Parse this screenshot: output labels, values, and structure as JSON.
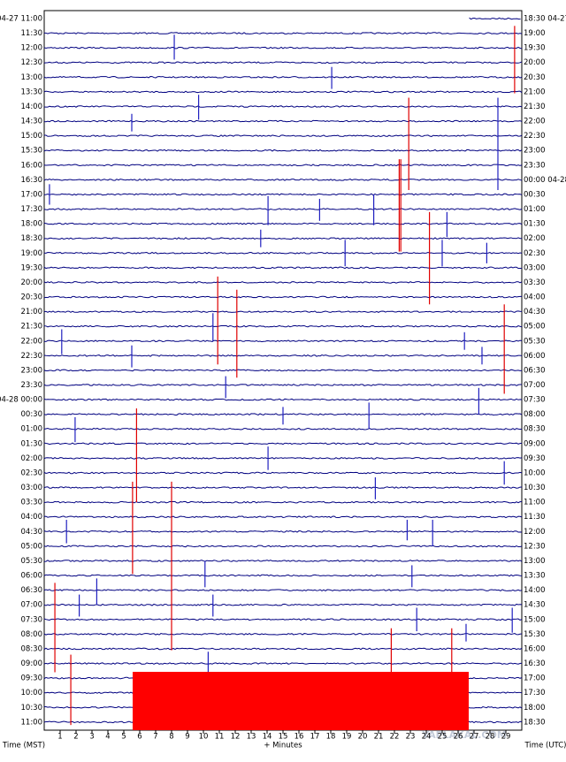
{
  "left_labels": [
    "04-27 11:00",
    "11:30",
    "12:00",
    "12:30",
    "13:00",
    "13:30",
    "14:00",
    "14:30",
    "15:00",
    "15:30",
    "16:00",
    "16:30",
    "17:00",
    "17:30",
    "18:00",
    "18:30",
    "19:00",
    "19:30",
    "20:00",
    "20:30",
    "21:00",
    "21:30",
    "22:00",
    "22:30",
    "23:00",
    "23:30",
    "04-28 00:00",
    "00:30",
    "01:00",
    "01:30",
    "02:00",
    "02:30",
    "03:00",
    "03:30",
    "04:00",
    "04:30",
    "05:00",
    "05:30",
    "06:00",
    "06:30",
    "07:00",
    "07:30",
    "08:00",
    "08:30",
    "09:00",
    "09:30",
    "10:00",
    "10:30",
    "11:00"
  ],
  "right_labels": [
    "18:30 04-27",
    "19:00",
    "19:30",
    "20:00",
    "20:30",
    "21:00",
    "21:30",
    "22:00",
    "22:30",
    "23:00",
    "23:30",
    "00:00 04-28",
    "00:30",
    "01:00",
    "01:30",
    "02:00",
    "02:30",
    "03:00",
    "03:30",
    "04:00",
    "04:30",
    "05:00",
    "05:30",
    "06:00",
    "06:30",
    "07:00",
    "07:30",
    "08:00",
    "08:30",
    "09:00",
    "09:30",
    "10:00",
    "10:30",
    "11:00",
    "11:30",
    "12:00",
    "12:30",
    "13:00",
    "13:30",
    "14:00",
    "14:30",
    "15:00",
    "15:30",
    "16:00",
    "16:30",
    "17:00",
    "17:30",
    "18:00",
    "18:30"
  ],
  "x_axis": {
    "xlim": [
      0,
      30
    ],
    "ticks": [
      1,
      2,
      3,
      4,
      5,
      6,
      7,
      8,
      9,
      10,
      11,
      12,
      13,
      14,
      15,
      16,
      17,
      18,
      19,
      20,
      21,
      22,
      23,
      24,
      25,
      26,
      27,
      28,
      29
    ],
    "label": "+ Minutes"
  },
  "left_axis_label": "Time (MST)",
  "right_axis_label": "Time (UTC)",
  "watermark": "YAPLAKAL.COM",
  "trace_color": "#000080",
  "first_trace_start_minute": 26.7,
  "events": [
    [
      29.55,
      0.5,
      5.1,
      "#e00000"
    ],
    [
      8.17,
      1.1,
      2.8,
      "#2020c0"
    ],
    [
      18.06,
      3.3,
      4.8,
      "#2020c0"
    ],
    [
      22.9,
      5.4,
      11.7,
      "#e00000"
    ],
    [
      9.7,
      5.2,
      6.9,
      "#2020c0"
    ],
    [
      5.5,
      6.5,
      7.7,
      "#2020c0"
    ],
    [
      28.5,
      5.4,
      11.7,
      "#2020c0"
    ],
    [
      22.3,
      9.6,
      15.9,
      "#e00000"
    ],
    [
      22.4,
      9.6,
      15.9,
      "#e00000"
    ],
    [
      0.33,
      11.3,
      12.7,
      "#2020c0"
    ],
    [
      14.06,
      12.1,
      14.1,
      "#2020c0"
    ],
    [
      17.3,
      12.3,
      13.8,
      "#2020c0"
    ],
    [
      20.7,
      12.0,
      14.1,
      "#2020c0"
    ],
    [
      24.2,
      13.2,
      19.5,
      "#e00000"
    ],
    [
      25.3,
      13.2,
      14.9,
      "#2020c0"
    ],
    [
      13.6,
      14.4,
      15.6,
      "#2020c0"
    ],
    [
      18.9,
      15.1,
      16.9,
      "#2020c0"
    ],
    [
      25.0,
      15.1,
      16.9,
      "#2020c0"
    ],
    [
      27.8,
      15.3,
      16.7,
      "#2020c0"
    ],
    [
      10.9,
      17.6,
      23.6,
      "#e00000"
    ],
    [
      12.1,
      18.5,
      24.5,
      "#e00000"
    ],
    [
      28.9,
      19.5,
      25.6,
      "#e00000"
    ],
    [
      10.6,
      20.1,
      22.0,
      "#2020c0"
    ],
    [
      1.1,
      21.2,
      22.9,
      "#2020c0"
    ],
    [
      26.4,
      21.4,
      22.6,
      "#2020c0"
    ],
    [
      5.5,
      22.3,
      23.8,
      "#2020c0"
    ],
    [
      27.5,
      22.4,
      23.6,
      "#2020c0"
    ],
    [
      11.4,
      24.4,
      25.9,
      "#2020c0"
    ],
    [
      27.3,
      25.2,
      27.0,
      "#2020c0"
    ],
    [
      20.4,
      26.2,
      28.0,
      "#2020c0"
    ],
    [
      15.0,
      26.5,
      27.7,
      "#2020c0"
    ],
    [
      1.94,
      27.2,
      28.9,
      "#2020c0"
    ],
    [
      5.8,
      26.6,
      33.0,
      "#e00000"
    ],
    [
      14.06,
      29.2,
      30.8,
      "#2020c0"
    ],
    [
      28.9,
      30.2,
      31.8,
      "#2020c0"
    ],
    [
      5.55,
      31.6,
      37.9,
      "#e00000"
    ],
    [
      8.0,
      31.6,
      43.1,
      "#e00000"
    ],
    [
      20.8,
      31.3,
      32.8,
      "#2020c0"
    ],
    [
      1.4,
      34.2,
      35.8,
      "#2020c0"
    ],
    [
      22.8,
      34.2,
      35.6,
      "#2020c0"
    ],
    [
      24.4,
      34.2,
      36.0,
      "#2020c0"
    ],
    [
      10.1,
      37.0,
      38.8,
      "#2020c0"
    ],
    [
      23.1,
      37.3,
      38.8,
      "#2020c0"
    ],
    [
      0.67,
      38.5,
      44.6,
      "#e00000"
    ],
    [
      3.3,
      38.2,
      40.0,
      "#2020c0"
    ],
    [
      2.2,
      39.3,
      40.8,
      "#2020c0"
    ],
    [
      10.6,
      39.3,
      40.8,
      "#2020c0"
    ],
    [
      23.4,
      40.2,
      41.8,
      "#2020c0"
    ],
    [
      29.4,
      40.2,
      41.9,
      "#2020c0"
    ],
    [
      21.8,
      41.6,
      44.6,
      "#e00000"
    ],
    [
      25.6,
      41.6,
      44.6,
      "#e00000"
    ],
    [
      26.5,
      41.3,
      42.5,
      "#2020c0"
    ],
    [
      1.67,
      43.4,
      48.2,
      "#e00000"
    ],
    [
      10.3,
      43.2,
      44.6,
      "#2020c0"
    ]
  ]
}
